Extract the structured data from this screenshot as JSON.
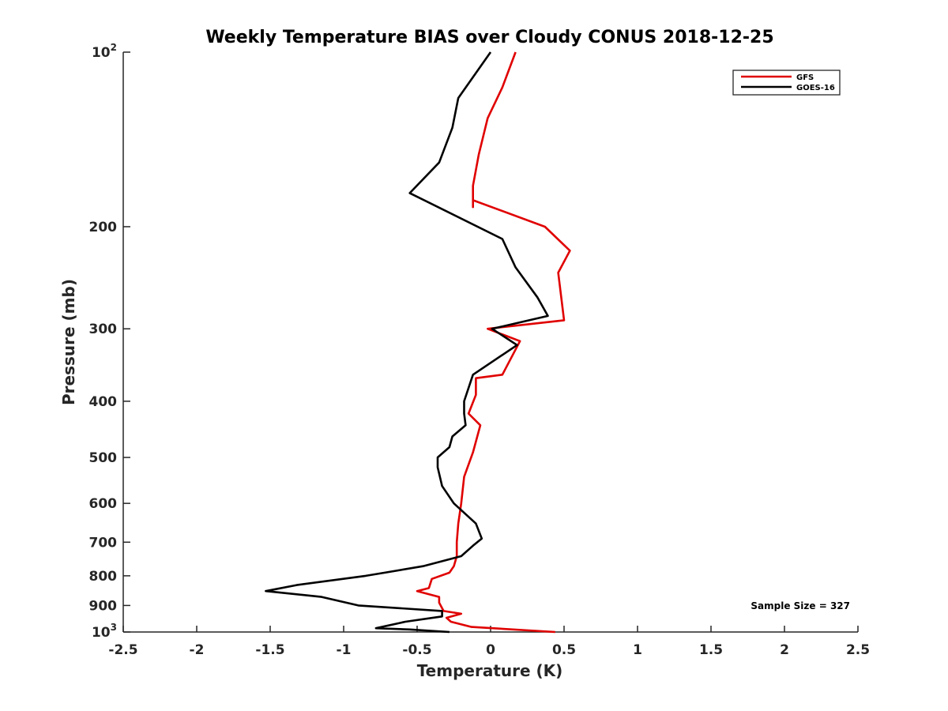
{
  "chart_data": {
    "type": "line",
    "title": "Weekly Temperature BIAS over Cloudy CONUS 2018-12-25",
    "xlabel": "Temperature (K)",
    "ylabel": "Pressure (mb)",
    "xlim": [
      -2.5,
      2.5
    ],
    "ylim": [
      100,
      1000
    ],
    "y_scale": "log",
    "y_reversed": true,
    "grid": false,
    "legend_position": "top-right",
    "x_ticks": [
      "-2.5",
      "-2",
      "-1.5",
      "-1",
      "-0.5",
      "0",
      "0.5",
      "1",
      "1.5",
      "2",
      "2.5"
    ],
    "x_tick_values": [
      -2.5,
      -2,
      -1.5,
      -1,
      -0.5,
      0,
      0.5,
      1,
      1.5,
      2,
      2.5
    ],
    "y_ticks": [
      {
        "value": 100,
        "base": "10",
        "exp": "2"
      },
      {
        "value": 200,
        "label": "200"
      },
      {
        "value": 300,
        "label": "300"
      },
      {
        "value": 400,
        "label": "400"
      },
      {
        "value": 500,
        "label": "500"
      },
      {
        "value": 600,
        "label": "600"
      },
      {
        "value": 700,
        "label": "700"
      },
      {
        "value": 800,
        "label": "800"
      },
      {
        "value": 900,
        "label": "900"
      },
      {
        "value": 1000,
        "base": "10",
        "exp": "3"
      }
    ],
    "series": [
      {
        "name": "GFS",
        "color": "#e00000",
        "x": [
          0.17,
          0.08,
          -0.02,
          -0.08,
          -0.12,
          -0.12,
          -0.12,
          0.37,
          0.54,
          0.46,
          0.5,
          -0.02,
          0.2,
          0.08,
          -0.1,
          -0.1,
          -0.15,
          -0.07,
          -0.12,
          -0.18,
          -0.2,
          -0.22,
          -0.23,
          -0.23,
          -0.25,
          -0.28,
          -0.4,
          -0.42,
          -0.5,
          -0.35,
          -0.35,
          -0.32,
          -0.2,
          -0.3,
          -0.27,
          -0.13,
          0.44
        ],
        "y": [
          100,
          115,
          130,
          150,
          170,
          185,
          180,
          200,
          220,
          240,
          290,
          300,
          315,
          360,
          365,
          390,
          420,
          440,
          490,
          540,
          600,
          650,
          700,
          740,
          770,
          790,
          810,
          840,
          850,
          870,
          890,
          920,
          930,
          945,
          960,
          980,
          1000
        ]
      },
      {
        "name": "GOES-16",
        "color": "#000000",
        "x": [
          0,
          -0.22,
          -0.26,
          -0.35,
          -0.55,
          0.08,
          0.17,
          0.32,
          0.39,
          0.01,
          0.18,
          -0.12,
          -0.18,
          -0.18,
          -0.17,
          -0.26,
          -0.28,
          -0.36,
          -0.36,
          -0.33,
          -0.25,
          -0.1,
          -0.06,
          -0.12,
          -0.2,
          -0.46,
          -0.72,
          -0.85,
          -1.32,
          -1.53,
          -1.15,
          -0.9,
          -0.33,
          -0.33,
          -0.58,
          -0.78,
          -0.55,
          -0.28
        ],
        "y": [
          100,
          120,
          135,
          155,
          175,
          210,
          235,
          265,
          285,
          300,
          320,
          360,
          400,
          420,
          440,
          460,
          480,
          500,
          520,
          560,
          600,
          650,
          690,
          710,
          740,
          770,
          790,
          800,
          830,
          850,
          870,
          900,
          920,
          940,
          960,
          985,
          990,
          1000
        ]
      }
    ],
    "annotation": "Sample Size = 327"
  }
}
